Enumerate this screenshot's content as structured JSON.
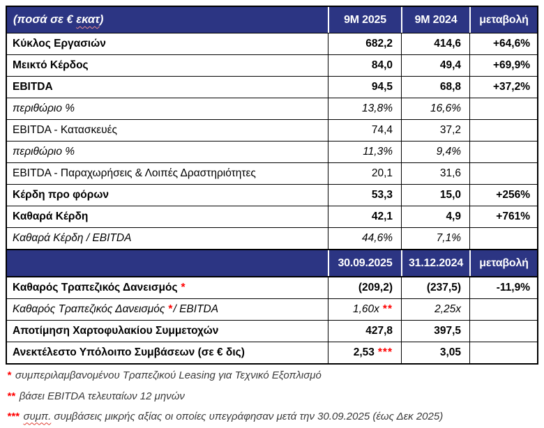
{
  "colors": {
    "header_bg": "#2C3583",
    "header_text": "#FFFFFF",
    "marker_red": "#FF0000",
    "border": "#000000",
    "footnote_text": "#3A3A3A",
    "squiggle_on_navy": "#F08F8F",
    "squiggle_on_white": "#E03C31"
  },
  "table": {
    "title": {
      "prefix": "(ποσά σε € ",
      "squiggle_word": "εκατ",
      "suffix": ")"
    },
    "header1": {
      "cols": [
        "9M 2025",
        "9M 2024",
        "μεταβολή"
      ]
    },
    "header2": {
      "cols": [
        "30.09.2025",
        "31.12.2024",
        "μεταβολή"
      ]
    },
    "section1_rows": [
      {
        "label": "Κύκλος Εργασιών",
        "v1": "682,2",
        "v2": "414,6",
        "change": "+64,6%",
        "style": "bold"
      },
      {
        "label": "Μεικτό Κέρδος",
        "v1": "84,0",
        "v2": "49,4",
        "change": "+69,9%",
        "style": "bold"
      },
      {
        "label": "EBITDA",
        "v1": "94,5",
        "v2": "68,8",
        "change": "+37,2%",
        "style": "bold"
      },
      {
        "label": "περιθώριο %",
        "v1": "13,8%",
        "v2": "16,6%",
        "change": "",
        "style": "italic"
      },
      {
        "label": "EBITDA - Κατασκευές",
        "v1": "74,4",
        "v2": "37,2",
        "change": "",
        "style": "regular"
      },
      {
        "label": "περιθώριο %",
        "v1": "11,3%",
        "v2": "9,4%",
        "change": "",
        "style": "italic"
      },
      {
        "label": "EBITDA - Παραχωρήσεις & Λοιπές Δραστηριότητες",
        "v1": "20,1",
        "v2": "31,6",
        "change": "",
        "style": "regular"
      },
      {
        "label": "Κέρδη προ φόρων",
        "v1": "53,3",
        "v2": "15,0",
        "change": "+256%",
        "style": "bold"
      },
      {
        "label": "Καθαρά Κέρδη",
        "v1": "42,1",
        "v2": "4,9",
        "change": "+761%",
        "style": "bold"
      },
      {
        "label": "Καθαρά Κέρδη / EBITDA",
        "v1": "44,6%",
        "v2": "7,1%",
        "change": "",
        "style": "italic"
      }
    ],
    "section2_rows": [
      {
        "label": "Καθαρός Τραπεζικός Δανεισμός",
        "label_marker": "*",
        "label_suffix": "",
        "v1": "(209,2)",
        "v1_marker": "",
        "v2": "(237,5)",
        "change": "-11,9%",
        "style": "bold"
      },
      {
        "label": "Καθαρός Τραπεζικός Δανεισμός",
        "label_marker": "*",
        "label_suffix": " / EBITDA",
        "v1": "1,60x",
        "v1_marker": "**",
        "v2": "2,25x",
        "change": "",
        "style": "italic"
      },
      {
        "label": "Αποτίμηση Χαρτοφυλακίου Συμμετοχών",
        "label_marker": "",
        "label_suffix": "",
        "v1": "427,8",
        "v1_marker": "",
        "v2": "397,5",
        "change": "",
        "style": "bold"
      },
      {
        "label": "Ανεκτέλεστο Υπόλοιπο Συμβάσεων (σε € δις)",
        "label_marker": "",
        "label_suffix": "",
        "v1": "2,53",
        "v1_marker": "***",
        "v2": "3,05",
        "change": "",
        "style": "bold"
      }
    ]
  },
  "footnotes": [
    {
      "marker": "*",
      "squiggle_word": "",
      "text": "συμπεριλαμβανομένου Τραπεζικού Leasing για Τεχνικό Εξοπλισμό"
    },
    {
      "marker": "**",
      "squiggle_word": "",
      "text": "βάσει EBITDA τελευταίων 12 μηνών"
    },
    {
      "marker": "***",
      "squiggle_word": "συμπ.",
      "text": " συμβάσεις μικρής αξίας οι οποίες υπεγράφησαν μετά την 30.09.2025 (έως Δεκ 2025)"
    }
  ]
}
